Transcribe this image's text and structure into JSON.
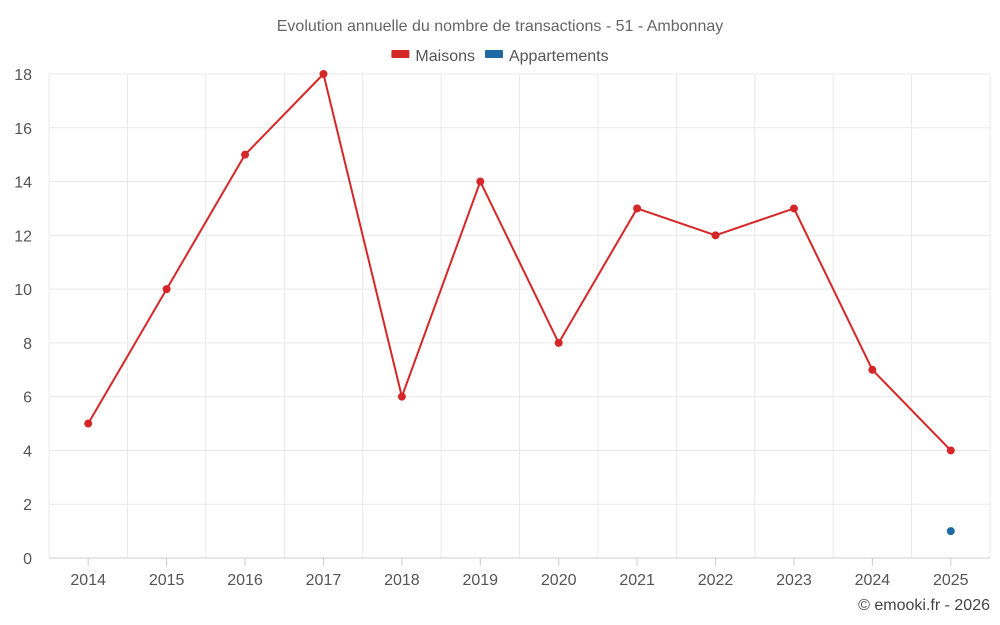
{
  "chart_data": {
    "type": "line",
    "title": "Evolution annuelle du nombre de transactions - 51 - Ambonnay",
    "categories": [
      "2014",
      "2015",
      "2016",
      "2017",
      "2018",
      "2019",
      "2020",
      "2021",
      "2022",
      "2023",
      "2024",
      "2025"
    ],
    "series": [
      {
        "name": "Maisons",
        "color": "#d62728",
        "values": [
          5,
          10,
          15,
          18,
          6,
          14,
          8,
          13,
          12,
          13,
          7,
          4
        ]
      },
      {
        "name": "Appartements",
        "color": "#1f6aa5",
        "values": [
          null,
          null,
          null,
          null,
          null,
          null,
          null,
          null,
          null,
          null,
          null,
          1
        ]
      }
    ],
    "ylim": [
      0,
      18
    ],
    "yticks": [
      0,
      2,
      4,
      6,
      8,
      10,
      12,
      14,
      16,
      18
    ],
    "xlabel": "",
    "ylabel": "",
    "grid": true,
    "legend": "top-center"
  },
  "credit": "© emooki.fr - 2026"
}
